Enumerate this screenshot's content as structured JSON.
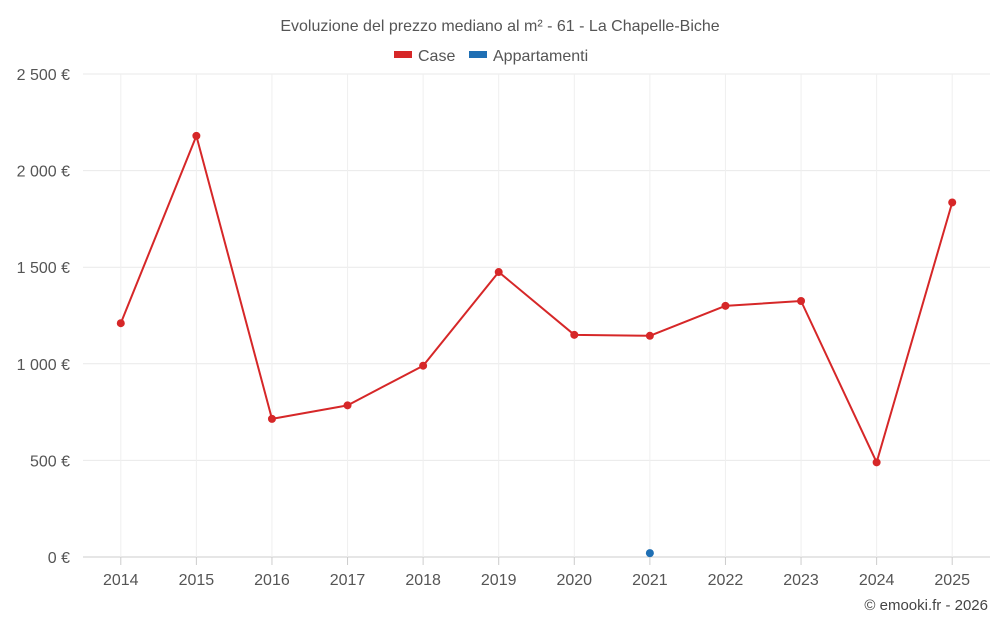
{
  "chart_data": {
    "type": "line",
    "title": "Evoluzione del prezzo mediano al m² - 61 - La Chapelle-Biche",
    "categories": [
      "2014",
      "2015",
      "2016",
      "2017",
      "2018",
      "2019",
      "2020",
      "2021",
      "2022",
      "2023",
      "2024",
      "2025"
    ],
    "series": [
      {
        "name": "Case",
        "color": "#d62728",
        "values": [
          1210,
          2180,
          715,
          785,
          990,
          1475,
          1150,
          1145,
          1300,
          1325,
          490,
          1835
        ]
      },
      {
        "name": "Appartamenti",
        "color": "#1f6fb4",
        "values": [
          null,
          null,
          null,
          null,
          null,
          null,
          null,
          20,
          null,
          null,
          null,
          null
        ]
      }
    ],
    "y_ticks": [
      0,
      500,
      1000,
      1500,
      2000,
      2500
    ],
    "y_tick_labels": [
      "0 €",
      "500 €",
      "1 000 €",
      "1 500 €",
      "2 000 €",
      "2 500 €"
    ],
    "ylim": [
      0,
      2500
    ],
    "xlabel": "",
    "ylabel": "",
    "grid": true,
    "legend_position": "top-center",
    "credit": "© emooki.fr - 2026"
  }
}
